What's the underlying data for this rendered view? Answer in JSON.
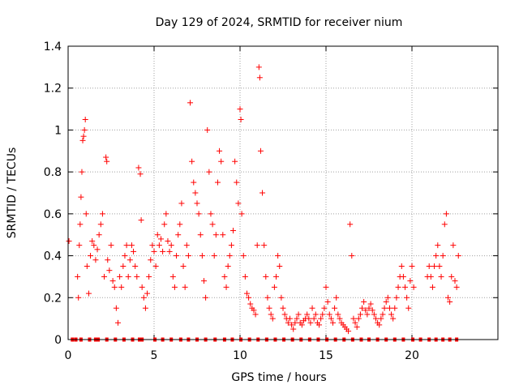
{
  "chart_data": {
    "type": "scatter",
    "title": "Day 129 of 2024, SRMTID for receiver nium",
    "xlabel": "GPS time / hours",
    "ylabel": "SRMTID / TECUs",
    "xlim": [
      0,
      25
    ],
    "ylim": [
      0,
      1.4
    ],
    "xticks": [
      0,
      5,
      10,
      15,
      20
    ],
    "xtick_labels": [
      "0",
      "5",
      "10",
      "15",
      "20"
    ],
    "yticks": [
      0,
      0.2,
      0.4,
      0.6,
      0.8,
      1.0,
      1.2,
      1.4
    ],
    "ytick_labels": [
      "0",
      "0.2",
      "0.4",
      "0.6",
      "0.8",
      "1",
      "1.2",
      "1.4"
    ],
    "grid": true,
    "marker": "+",
    "color": "#ff0000",
    "series": [
      {
        "name": "SRMTID",
        "x": [
          0.05,
          0.55,
          0.6,
          0.65,
          0.7,
          0.75,
          0.8,
          0.85,
          0.9,
          0.95,
          1.0,
          1.05,
          1.1,
          1.2,
          1.3,
          1.4,
          1.5,
          1.6,
          1.7,
          1.8,
          1.9,
          2.0,
          2.1,
          2.2,
          2.25,
          2.3,
          2.4,
          2.5,
          2.6,
          2.7,
          2.8,
          2.9,
          3.0,
          3.1,
          3.2,
          3.3,
          3.4,
          3.5,
          3.6,
          3.7,
          3.8,
          3.9,
          4.0,
          4.1,
          4.2,
          4.25,
          4.3,
          4.4,
          4.5,
          4.6,
          4.7,
          4.8,
          4.9,
          5.0,
          5.1,
          5.2,
          5.3,
          5.4,
          5.5,
          5.6,
          5.7,
          5.8,
          5.9,
          6.0,
          6.1,
          6.2,
          6.3,
          6.4,
          6.5,
          6.6,
          6.7,
          6.8,
          6.9,
          7.0,
          7.1,
          7.2,
          7.3,
          7.4,
          7.5,
          7.6,
          7.7,
          7.8,
          7.9,
          8.0,
          8.1,
          8.2,
          8.3,
          8.4,
          8.5,
          8.6,
          8.7,
          8.8,
          8.9,
          9.0,
          9.1,
          9.2,
          9.3,
          9.4,
          9.5,
          9.6,
          9.7,
          9.8,
          9.9,
          10.0,
          10.05,
          10.1,
          10.2,
          10.3,
          10.4,
          10.5,
          10.6,
          10.7,
          10.8,
          10.9,
          11.0,
          11.1,
          11.15,
          11.2,
          11.3,
          11.4,
          11.5,
          11.6,
          11.7,
          11.8,
          11.9,
          12.0,
          12.1,
          12.2,
          12.3,
          12.4,
          12.5,
          12.6,
          12.7,
          12.8,
          12.9,
          13.0,
          13.1,
          13.2,
          13.3,
          13.4,
          13.5,
          13.6,
          13.7,
          13.8,
          13.9,
          14.0,
          14.1,
          14.2,
          14.3,
          14.4,
          14.5,
          14.6,
          14.7,
          14.8,
          14.9,
          15.0,
          15.1,
          15.2,
          15.3,
          15.4,
          15.5,
          15.6,
          15.7,
          15.8,
          15.9,
          16.0,
          16.1,
          16.2,
          16.3,
          16.4,
          16.5,
          16.6,
          16.7,
          16.8,
          16.9,
          17.0,
          17.1,
          17.2,
          17.3,
          17.4,
          17.5,
          17.6,
          17.7,
          17.8,
          17.9,
          18.0,
          18.1,
          18.2,
          18.3,
          18.4,
          18.5,
          18.6,
          18.7,
          18.8,
          18.9,
          19.0,
          19.1,
          19.2,
          19.3,
          19.4,
          19.5,
          19.6,
          19.7,
          19.8,
          19.9,
          20.0,
          20.1,
          20.9,
          21.0,
          21.1,
          21.2,
          21.3,
          21.4,
          21.5,
          21.6,
          21.7,
          21.8,
          21.9,
          22.0,
          22.1,
          22.2,
          22.3,
          22.4,
          22.5,
          22.6,
          22.7
        ],
        "y": [
          0.47,
          0.3,
          0.2,
          0.45,
          0.55,
          0.68,
          0.8,
          0.95,
          0.97,
          1.0,
          1.05,
          0.6,
          0.35,
          0.22,
          0.4,
          0.47,
          0.45,
          0.38,
          0.43,
          0.5,
          0.55,
          0.6,
          0.3,
          0.87,
          0.85,
          0.38,
          0.33,
          0.45,
          0.28,
          0.25,
          0.15,
          0.08,
          0.3,
          0.25,
          0.35,
          0.4,
          0.45,
          0.3,
          0.38,
          0.45,
          0.42,
          0.35,
          0.3,
          0.82,
          0.79,
          0.57,
          0.25,
          0.2,
          0.15,
          0.22,
          0.3,
          0.38,
          0.45,
          0.42,
          0.35,
          0.5,
          0.45,
          0.48,
          0.42,
          0.55,
          0.6,
          0.47,
          0.42,
          0.45,
          0.3,
          0.25,
          0.4,
          0.5,
          0.55,
          0.65,
          0.35,
          0.25,
          0.45,
          0.4,
          1.13,
          0.85,
          0.75,
          0.7,
          0.65,
          0.6,
          0.5,
          0.4,
          0.28,
          0.2,
          1.0,
          0.8,
          0.6,
          0.55,
          0.4,
          0.5,
          0.75,
          0.9,
          0.85,
          0.5,
          0.3,
          0.25,
          0.35,
          0.4,
          0.45,
          0.52,
          0.85,
          0.75,
          0.65,
          1.1,
          1.05,
          0.6,
          0.4,
          0.3,
          0.22,
          0.2,
          0.17,
          0.15,
          0.14,
          0.12,
          0.45,
          1.3,
          1.25,
          0.9,
          0.7,
          0.45,
          0.3,
          0.2,
          0.15,
          0.12,
          0.1,
          0.25,
          0.3,
          0.4,
          0.35,
          0.2,
          0.15,
          0.12,
          0.1,
          0.08,
          0.1,
          0.07,
          0.05,
          0.08,
          0.1,
          0.12,
          0.08,
          0.07,
          0.09,
          0.1,
          0.12,
          0.1,
          0.08,
          0.15,
          0.1,
          0.12,
          0.08,
          0.07,
          0.1,
          0.12,
          0.15,
          0.25,
          0.18,
          0.12,
          0.1,
          0.08,
          0.15,
          0.2,
          0.12,
          0.1,
          0.08,
          0.07,
          0.06,
          0.05,
          0.04,
          0.55,
          0.4,
          0.1,
          0.08,
          0.06,
          0.1,
          0.12,
          0.15,
          0.18,
          0.14,
          0.12,
          0.15,
          0.17,
          0.14,
          0.12,
          0.1,
          0.08,
          0.07,
          0.1,
          0.12,
          0.15,
          0.18,
          0.2,
          0.15,
          0.12,
          0.1,
          0.15,
          0.2,
          0.25,
          0.3,
          0.35,
          0.3,
          0.25,
          0.2,
          0.15,
          0.28,
          0.35,
          0.25,
          0.3,
          0.35,
          0.3,
          0.25,
          0.35,
          0.4,
          0.45,
          0.35,
          0.3,
          0.4,
          0.55,
          0.6,
          0.2,
          0.18,
          0.3,
          0.45,
          0.28,
          0.25,
          0.4
        ],
        "flagged_x": [
          0.25,
          0.45,
          0.75,
          1.25,
          1.6,
          1.75,
          2.25,
          2.75,
          3.25,
          3.75,
          4.15,
          4.3,
          5.05,
          5.5,
          6.0,
          6.55,
          7.0,
          7.5,
          8.0,
          8.55,
          9.1,
          9.55,
          10.05,
          10.55,
          11.05,
          11.55,
          12.05,
          12.55,
          13.05,
          13.55,
          14.05,
          14.55,
          15.05,
          15.55,
          16.05,
          16.55,
          17.05,
          17.5,
          18.0,
          18.5,
          19.0,
          19.5,
          20.05,
          20.5,
          21.0,
          21.4,
          21.8,
          22.2,
          22.6
        ],
        "flagged_y": 0.0
      }
    ]
  }
}
